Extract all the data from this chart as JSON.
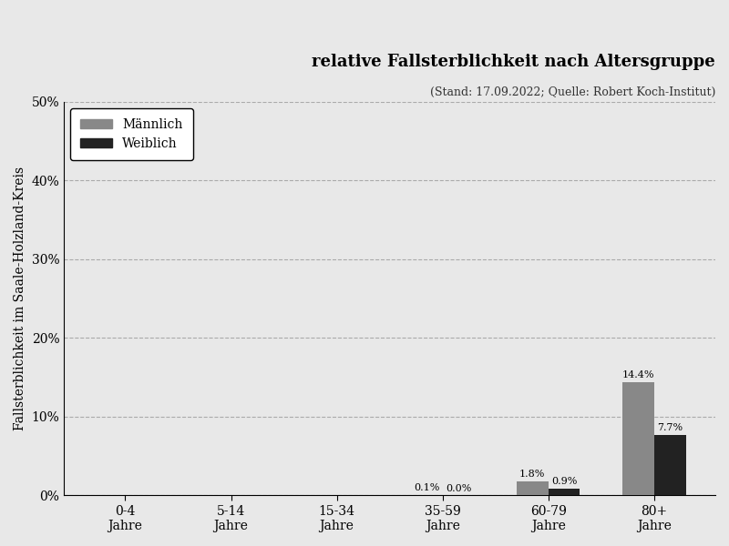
{
  "title": "relative Fallsterblichkeit nach Altersgruppe",
  "subtitle": "(Stand: 17.09.2022; Quelle: Robert Koch-Institut)",
  "ylabel": "Fallsterblichkeit im Saale-Holzland-Kreis",
  "categories": [
    "0-4\nJahre",
    "5-14\nJahre",
    "15-34\nJahre",
    "35-59\nJahre",
    "60-79\nJahre",
    "80+\nJahre"
  ],
  "maennlich": [
    0.0,
    0.0,
    0.0,
    0.1,
    1.8,
    14.4
  ],
  "weiblich": [
    0.0,
    0.0,
    0.0,
    0.0,
    0.9,
    7.7
  ],
  "maennlich_labels": [
    "",
    "",
    "",
    "0.1%",
    "1.8%",
    "14.4%"
  ],
  "weiblich_labels": [
    "",
    "",
    "",
    "0.0%",
    "0.9%",
    "7.7%"
  ],
  "color_maennlich": "#888888",
  "color_weiblich": "#222222",
  "ylim": [
    0,
    50
  ],
  "yticks": [
    0,
    10,
    20,
    30,
    40,
    50
  ],
  "ytick_labels": [
    "0%",
    "10%",
    "20%",
    "30%",
    "40%",
    "50%"
  ],
  "figure_bg": "#e8e8e8",
  "axes_bg": "#e8e8e8",
  "bar_width": 0.3,
  "legend_maennlich": "Männlich",
  "legend_weiblich": "Weiblich",
  "title_fontsize": 13,
  "subtitle_fontsize": 9,
  "ylabel_fontsize": 10,
  "tick_fontsize": 10,
  "label_fontsize": 8
}
